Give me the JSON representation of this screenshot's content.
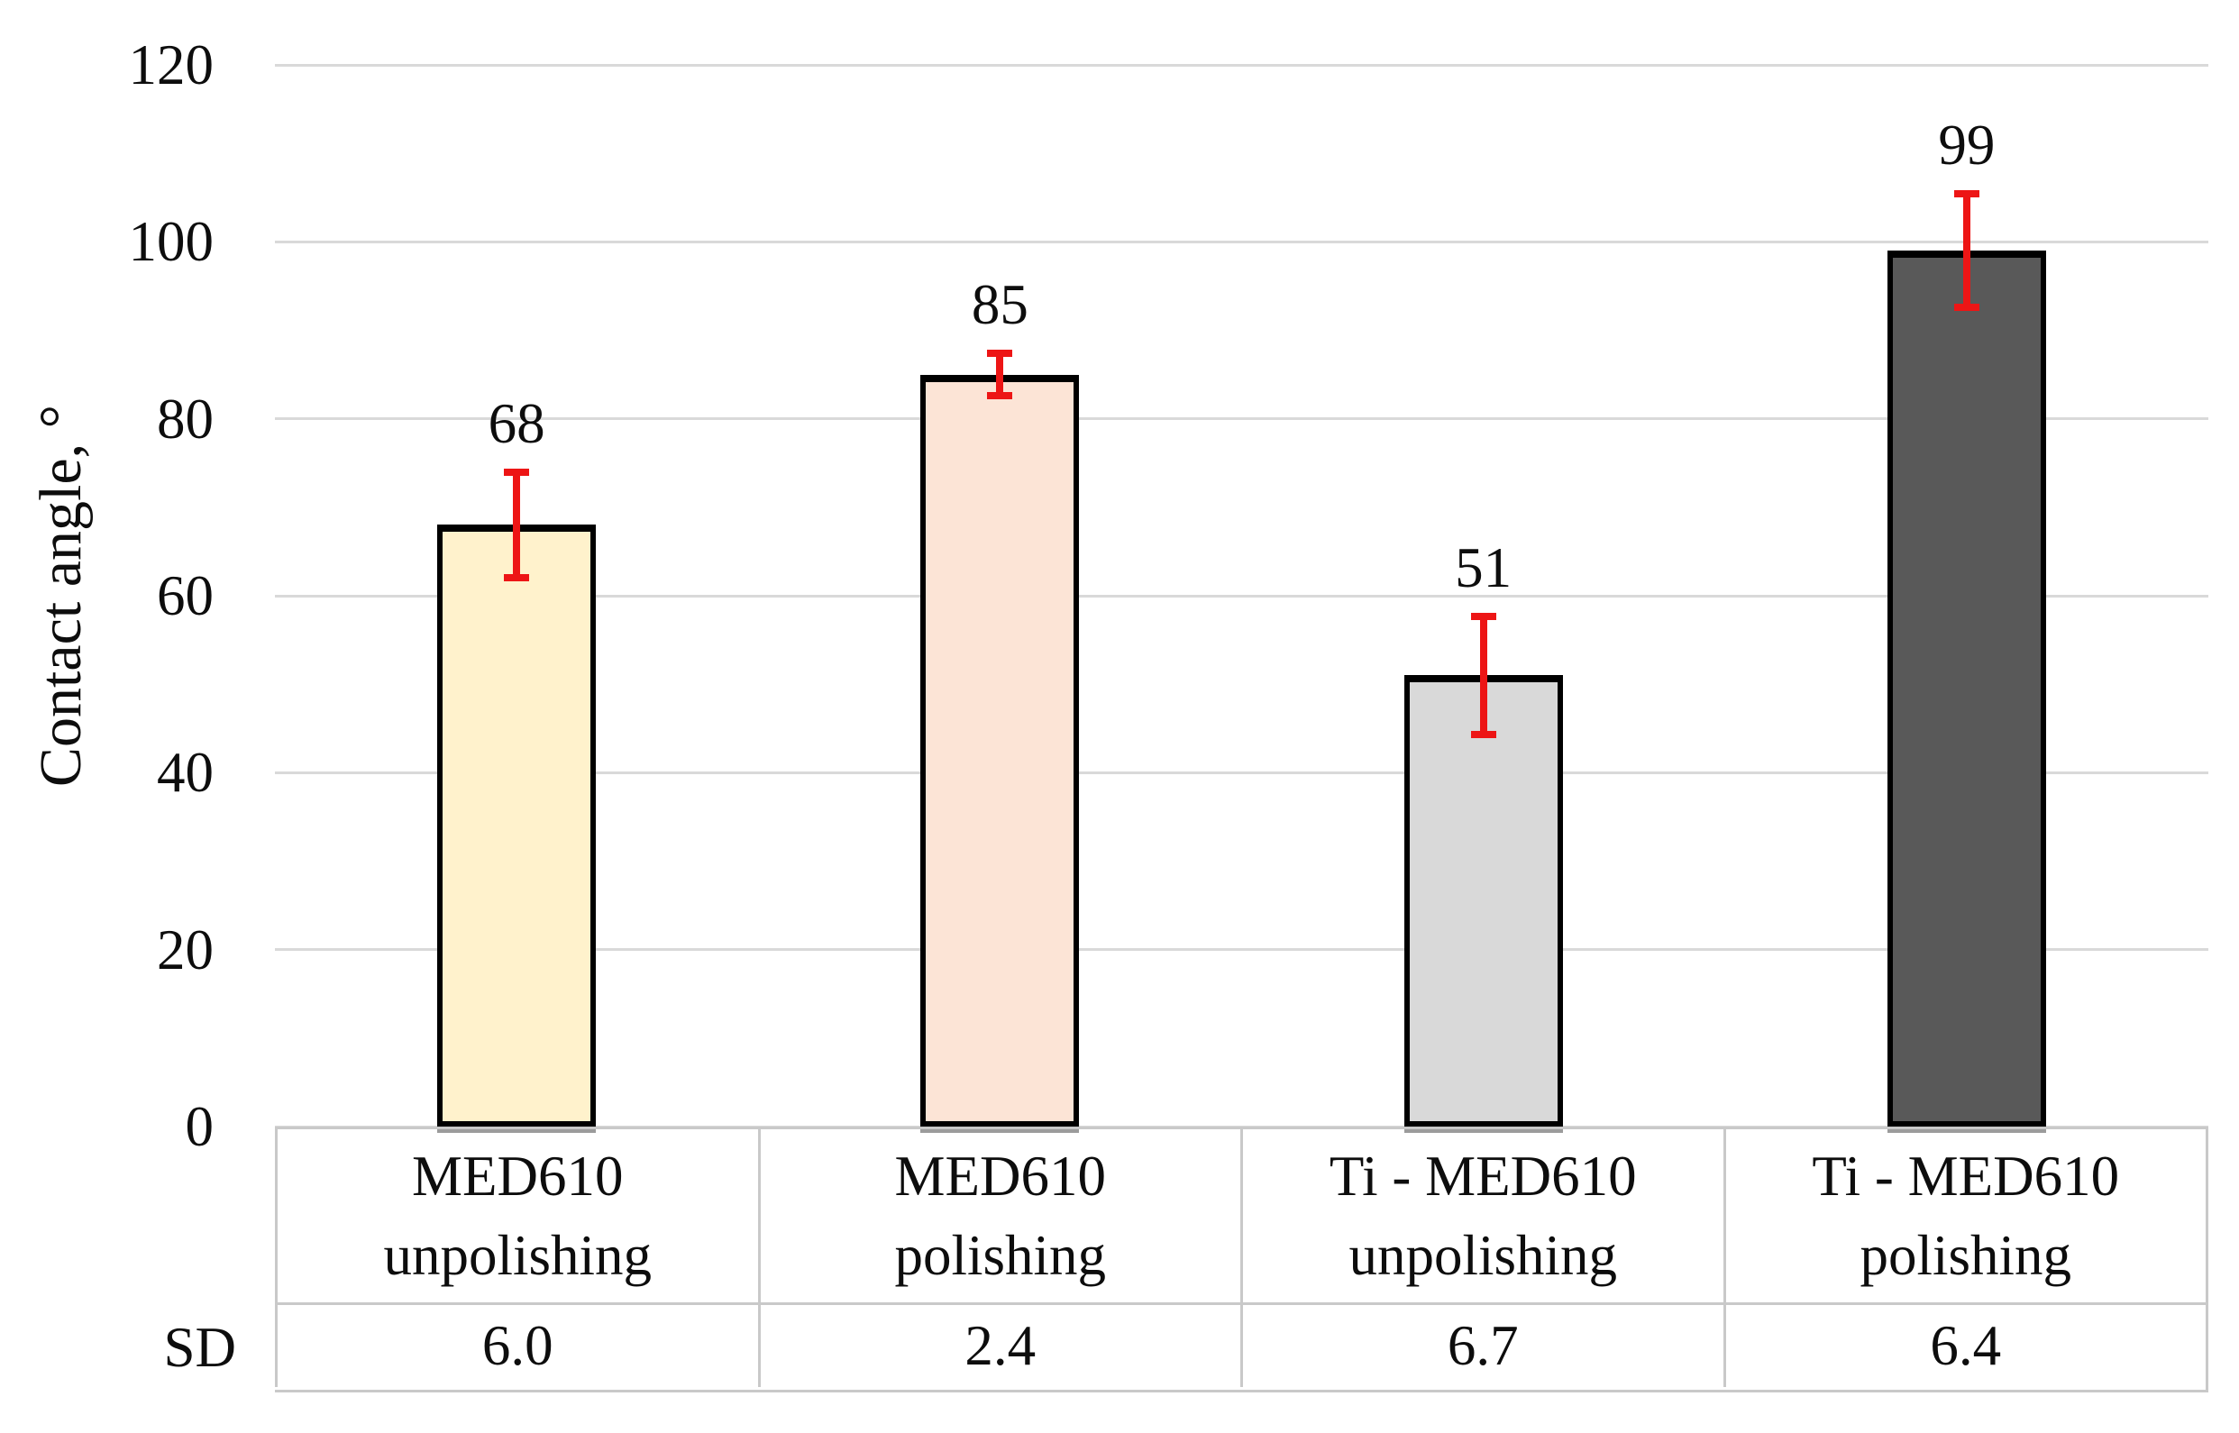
{
  "chart_data": {
    "type": "bar",
    "title": "",
    "xlabel": "",
    "ylabel": "Contact angle, °",
    "ylim": [
      0,
      120
    ],
    "yticks": [
      0,
      20,
      40,
      60,
      80,
      100,
      120
    ],
    "grid": "horizontal-only",
    "legend_position": "none",
    "categories": [
      "MED610 unpolishing",
      "MED610 polishing",
      "Ti - MED610 unpolishing",
      "Ti - MED610 polishing"
    ],
    "category_lines": [
      [
        "MED610",
        "unpolishing"
      ],
      [
        "MED610",
        "polishing"
      ],
      [
        "Ti - MED610",
        "unpolishing"
      ],
      [
        "Ti - MED610",
        "polishing"
      ]
    ],
    "values": [
      68,
      85,
      51,
      99
    ],
    "value_labels": [
      "68",
      "85",
      "51",
      "99"
    ],
    "error_bars_sd": [
      6.0,
      2.4,
      6.7,
      6.4
    ],
    "sd_table_row": {
      "header": "SD",
      "cells": [
        "6.0",
        "2.4",
        "6.7",
        "6.4"
      ]
    },
    "colors": {
      "bar_fills": [
        "#fff2cc",
        "#fce4d6",
        "#d9d9d9",
        "#595959"
      ],
      "bar_border": "#000000",
      "error_bar": "#ed1515",
      "gridline": "#d9d9d9",
      "table_border": "#c9c9c9",
      "bar_base_shadow": "#9b9b9b",
      "text": "#0d0d0d",
      "background": "#ffffff"
    }
  }
}
